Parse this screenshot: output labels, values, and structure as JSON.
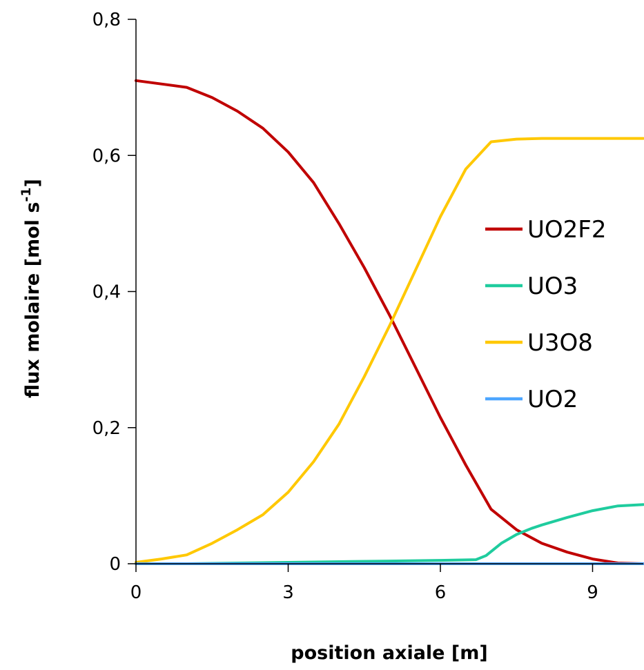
{
  "chart_data": {
    "type": "line",
    "xlabel": "position axiale [m]",
    "ylabel": "flux molaire [mol s",
    "ylabel_sup": "-1",
    "ylabel_end": "]",
    "xlim": [
      0,
      10
    ],
    "ylim": [
      0,
      0.8
    ],
    "x_ticks": [
      0,
      3,
      6,
      9
    ],
    "x_tick_labels": [
      "0",
      "3",
      "6",
      "9"
    ],
    "y_ticks": [
      0,
      0.2,
      0.4,
      0.6,
      0.8
    ],
    "y_tick_labels": [
      "0",
      "0,2",
      "0,4",
      "0,6",
      "0,8"
    ],
    "grid": false,
    "legend_position": "right",
    "series": [
      {
        "name": "UO2F2",
        "color": "#c00000",
        "x": [
          0,
          0.5,
          1,
          1.5,
          2,
          2.5,
          3,
          3.5,
          4,
          4.5,
          5,
          5.5,
          6,
          6.5,
          7,
          7.5,
          8,
          8.5,
          9,
          9.5,
          10
        ],
        "y": [
          0.71,
          0.705,
          0.7,
          0.685,
          0.665,
          0.64,
          0.605,
          0.56,
          0.5,
          0.435,
          0.365,
          0.29,
          0.215,
          0.145,
          0.08,
          0.05,
          0.03,
          0.017,
          0.007,
          0.001,
          0.0
        ]
      },
      {
        "name": "UO3",
        "color": "#1fcc9e",
        "x": [
          0,
          1,
          2,
          3,
          4,
          5,
          6,
          6.7,
          6.9,
          7.2,
          7.5,
          7.8,
          8,
          8.5,
          9,
          9.5,
          10
        ],
        "y": [
          0.0,
          0.0,
          0.001,
          0.002,
          0.003,
          0.004,
          0.005,
          0.006,
          0.012,
          0.03,
          0.043,
          0.052,
          0.057,
          0.068,
          0.078,
          0.085,
          0.087
        ]
      },
      {
        "name": "U3O8",
        "color": "#ffc800",
        "x": [
          0,
          0.5,
          1,
          1.5,
          2,
          2.5,
          3,
          3.5,
          4,
          4.5,
          5,
          5.5,
          6,
          6.5,
          7,
          7.5,
          8,
          8.5,
          9,
          9.5,
          10
        ],
        "y": [
          0.002,
          0.007,
          0.013,
          0.03,
          0.05,
          0.072,
          0.105,
          0.15,
          0.205,
          0.275,
          0.35,
          0.43,
          0.51,
          0.58,
          0.62,
          0.624,
          0.625,
          0.625,
          0.625,
          0.625,
          0.625
        ]
      },
      {
        "name": "UO2",
        "color": "#4da6ff",
        "x": [
          0,
          10
        ],
        "y": [
          0.0,
          0.0
        ]
      }
    ]
  }
}
